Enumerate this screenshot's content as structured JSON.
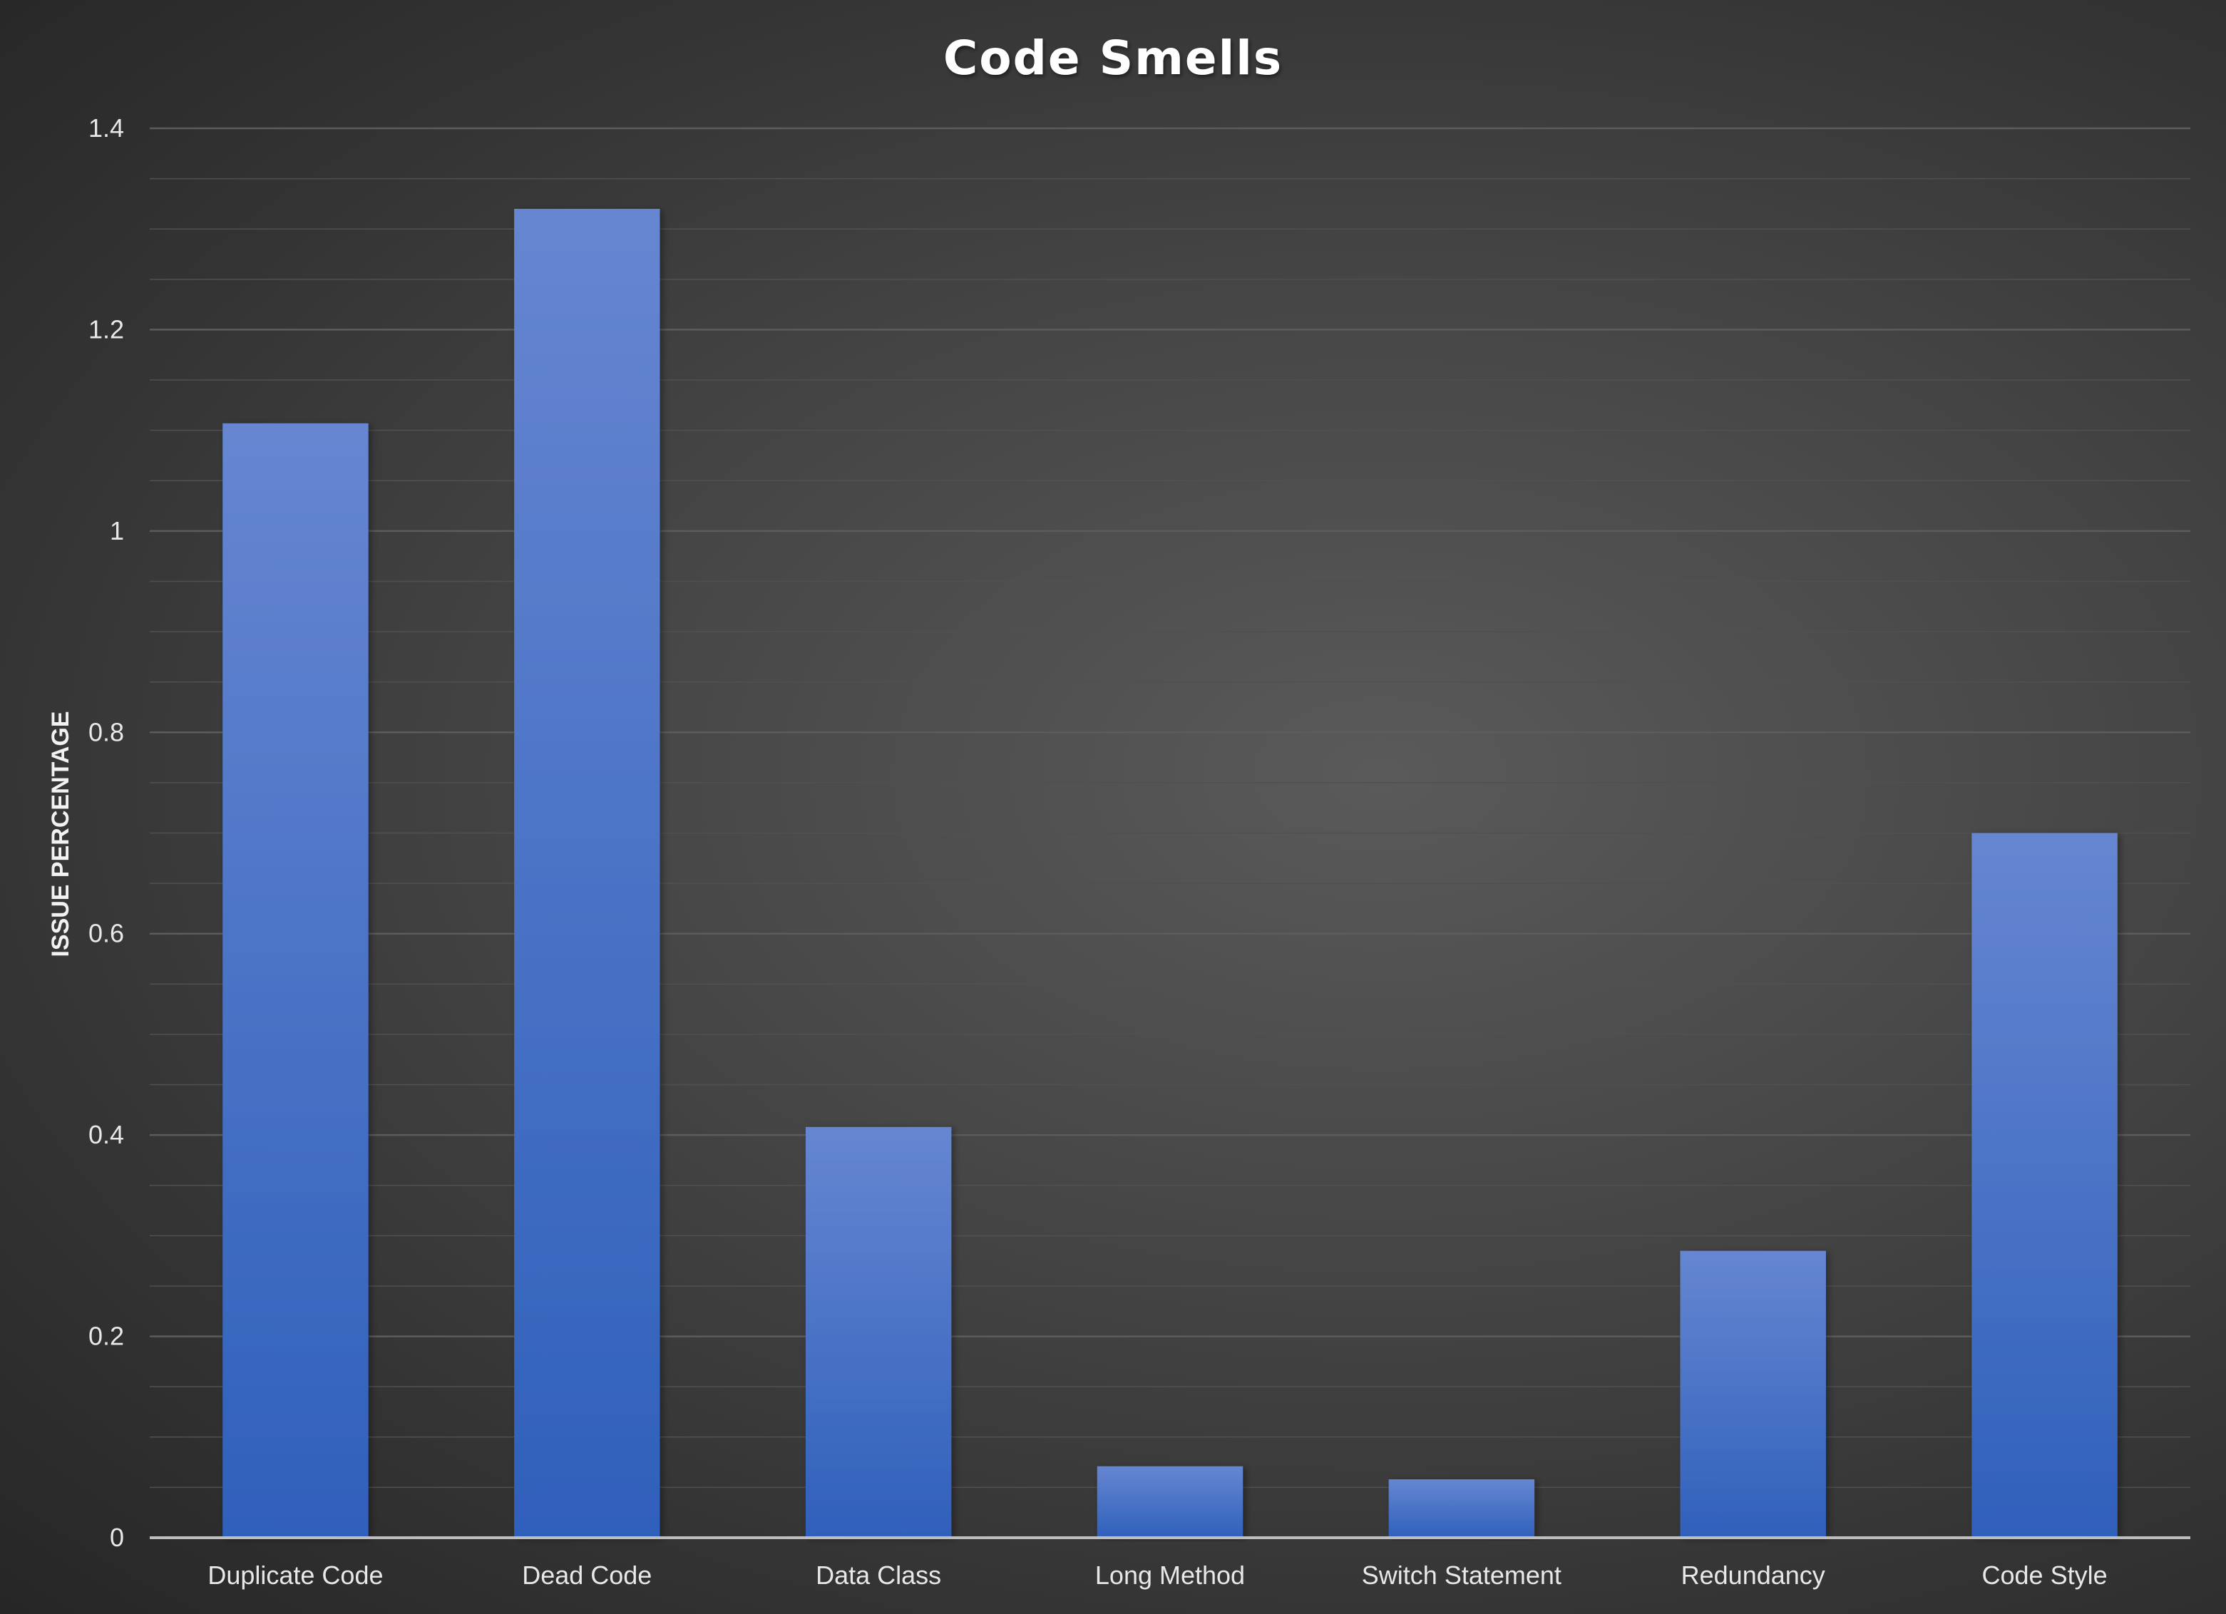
{
  "chart_data": {
    "type": "bar",
    "title": "Code Smells",
    "xlabel": "",
    "ylabel": "ISSUE PERCENTAGE",
    "categories": [
      "Duplicate Code",
      "Dead Code",
      "Data Class",
      "Long Method",
      "Switch Statement",
      "Redundancy",
      "Code Style"
    ],
    "values": [
      1.107,
      1.32,
      0.408,
      0.071,
      0.058,
      0.285,
      0.7
    ],
    "ylim": [
      0,
      1.4
    ],
    "yticks": [
      0,
      0.2,
      0.4,
      0.6,
      0.8,
      1,
      1.2,
      1.4
    ],
    "ytick_labels": [
      "0",
      "0.2",
      "0.4",
      "0.6",
      "0.8",
      "1",
      "1.2",
      "1.4"
    ],
    "grid": true,
    "legend": "none",
    "colors": {
      "bar_top": "#6686d1",
      "bar_bottom": "#2f60bb",
      "gridline": "#5c5c5c",
      "axis": "#bdbdbd",
      "text": "#e8e8e8"
    }
  }
}
